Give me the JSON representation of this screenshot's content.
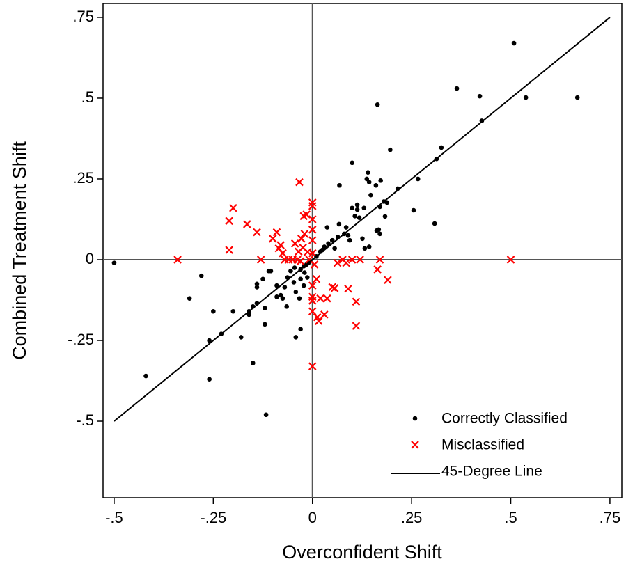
{
  "chart_data": {
    "type": "scatter",
    "x_label": "Overconfident Shift",
    "y_label": "Combined Treatment Shift",
    "xlim": [
      -0.528,
      0.78
    ],
    "ylim": [
      -0.737,
      0.793
    ],
    "xticks": [
      {
        "value": -0.5,
        "label": "-.5"
      },
      {
        "value": -0.25,
        "label": "-.25"
      },
      0,
      {
        "value": 0.25,
        "label": ".25"
      },
      {
        "value": 0.5,
        "label": ".5"
      },
      {
        "value": 0.75,
        "label": ".75"
      }
    ],
    "yticks": [
      {
        "value": -0.5,
        "label": "-.5"
      },
      {
        "value": -0.25,
        "label": "-.25"
      },
      0,
      {
        "value": 0.25,
        "label": ".25"
      },
      {
        "value": 0.5,
        "label": ".5"
      },
      {
        "value": 0.75,
        "label": ".75"
      }
    ],
    "xline": 0,
    "yline": 0,
    "grid": false,
    "legend_position": "lower-right",
    "series": [
      {
        "name": "Correctly Classified",
        "color": "#000000",
        "marker": "dot",
        "x": [
          -0.5,
          -0.42,
          -0.28,
          -0.31,
          -0.25,
          -0.26,
          -0.26,
          -0.23,
          -0.18,
          -0.2,
          -0.16,
          -0.16,
          -0.15,
          -0.14,
          -0.117,
          -0.15,
          -0.12,
          -0.12,
          -0.14,
          -0.14,
          -0.125,
          -0.105,
          -0.09,
          -0.09,
          -0.08,
          -0.075,
          -0.065,
          -0.07,
          -0.063,
          -0.055,
          -0.045,
          -0.047,
          -0.042,
          -0.03,
          -0.042,
          -0.033,
          -0.03,
          -0.03,
          -0.022,
          -0.02,
          -0.015,
          -0.01,
          -0.022,
          -0.013,
          0.01,
          0.02,
          0.025,
          0.03,
          0.04,
          0.037,
          0.05,
          0.056,
          0.064,
          0.067,
          0.068,
          0.08,
          0.085,
          0.09,
          0.094,
          0.1,
          0.1,
          0.107,
          0.113,
          0.113,
          0.118,
          0.126,
          0.13,
          0.132,
          0.137,
          0.143,
          0.143,
          0.14,
          0.147,
          0.16,
          0.164,
          0.162,
          0.167,
          0.17,
          0.17,
          0.172,
          0.18,
          0.183,
          0.188,
          0.196,
          0.215,
          0.255,
          0.266,
          0.308,
          0.313,
          0.325,
          0.364,
          0.422,
          0.427,
          0.508,
          0.538,
          0.668,
          -0.11
        ],
        "y": [
          -0.01,
          -0.36,
          -0.05,
          -0.12,
          -0.16,
          -0.25,
          -0.37,
          -0.23,
          -0.24,
          -0.16,
          -0.17,
          -0.16,
          -0.145,
          -0.135,
          -0.48,
          -0.32,
          -0.2,
          -0.15,
          -0.085,
          -0.075,
          -0.06,
          -0.035,
          -0.08,
          -0.115,
          -0.11,
          -0.12,
          -0.145,
          -0.085,
          -0.055,
          -0.035,
          -0.025,
          -0.07,
          -0.1,
          -0.215,
          -0.24,
          -0.12,
          -0.06,
          -0.03,
          -0.02,
          -0.04,
          -0.015,
          -0.01,
          -0.08,
          -0.055,
          0.01,
          0.025,
          0.03,
          0.04,
          0.05,
          0.1,
          0.06,
          0.035,
          0.07,
          0.11,
          0.23,
          0.08,
          0.1,
          0.075,
          0.06,
          0.16,
          0.3,
          0.135,
          0.17,
          0.155,
          0.13,
          0.065,
          0.16,
          0.035,
          0.25,
          0.24,
          0.04,
          0.27,
          0.2,
          0.23,
          0.48,
          0.09,
          0.093,
          0.08,
          0.164,
          0.245,
          0.18,
          0.134,
          0.177,
          0.34,
          0.22,
          0.153,
          0.25,
          0.112,
          0.312,
          0.347,
          0.53,
          0.506,
          0.43,
          0.67,
          0.502,
          0.502,
          -0.035
        ]
      },
      {
        "name": "Misclassified",
        "color": "#ff0000",
        "marker": "x",
        "x": [
          -0.34,
          -0.2,
          -0.21,
          -0.21,
          -0.165,
          -0.14,
          -0.13,
          -0.1,
          -0.09,
          -0.08,
          -0.085,
          -0.075,
          -0.07,
          -0.06,
          -0.05,
          -0.044,
          -0.038,
          -0.035,
          -0.033,
          -0.028,
          -0.022,
          -0.024,
          -0.03,
          -0.02,
          -0.015,
          -0.012,
          -0.008,
          0,
          0,
          0,
          0,
          0,
          0,
          0,
          0,
          0,
          0,
          0,
          0.005,
          0.01,
          0.012,
          0.016,
          0.02,
          0.03,
          0.037,
          0.05,
          0.056,
          0.063,
          0.076,
          0.085,
          0.09,
          0.1,
          0.11,
          0.11,
          0.12,
          0.164,
          0.17,
          0.19,
          0.5
        ],
        "y": [
          0,
          0.16,
          0.12,
          0.03,
          0.11,
          0.085,
          0,
          0.065,
          0.085,
          0.045,
          0.035,
          0.02,
          0,
          0,
          0,
          0.05,
          0,
          0.025,
          0.24,
          0.065,
          0.135,
          0.037,
          -0.005,
          0.08,
          0.14,
          0.024,
          0,
          0.177,
          0.166,
          0.125,
          0.093,
          0.06,
          0.02,
          -0.08,
          -0.115,
          -0.127,
          -0.16,
          -0.33,
          -0.015,
          -0.06,
          -0.178,
          -0.19,
          -0.12,
          -0.17,
          -0.12,
          -0.085,
          -0.088,
          -0.01,
          0,
          -0.01,
          -0.09,
          0,
          -0.13,
          -0.205,
          0,
          -0.03,
          0,
          -0.063,
          0
        ]
      },
      {
        "name": "45-Degree Line",
        "color": "#000000",
        "marker": "line",
        "x": [
          -0.5,
          0.75
        ],
        "y": [
          -0.5,
          0.75
        ]
      }
    ]
  }
}
